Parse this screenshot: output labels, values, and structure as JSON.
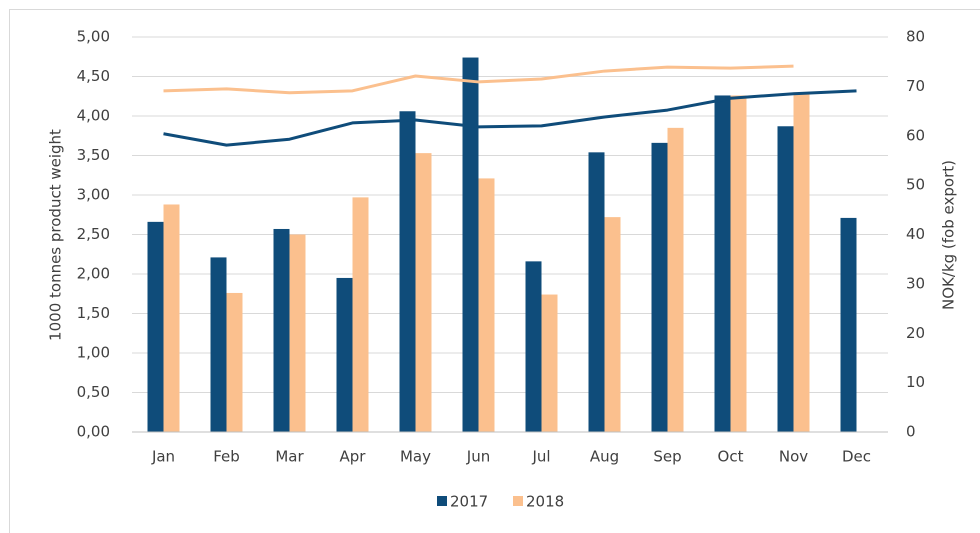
{
  "chart_data": {
    "type": "bar",
    "y_label": "1000 tonnes product weight",
    "y2_label": "NOK/kg (fob export)",
    "categories": [
      "Jan",
      "Feb",
      "Mar",
      "Apr",
      "May",
      "Jun",
      "Jul",
      "Aug",
      "Sep",
      "Oct",
      "Nov",
      "Dec"
    ],
    "series": [
      {
        "name": "2017",
        "color": "#0f4c7a",
        "values": [
          2.66,
          2.21,
          2.57,
          1.95,
          4.06,
          4.74,
          2.16,
          3.54,
          3.66,
          4.26,
          3.87,
          2.71
        ]
      },
      {
        "name": "2018",
        "color": "#fbc08e",
        "values": [
          2.88,
          1.76,
          2.5,
          2.97,
          3.53,
          3.21,
          1.74,
          2.72,
          3.85,
          4.26,
          4.3,
          null
        ]
      }
    ],
    "lines": [
      {
        "color": "#0f4c7a",
        "axis": "y2",
        "values": [
          60.4,
          58.1,
          59.3,
          62.6,
          63.2,
          61.8,
          62.0,
          63.8,
          65.2,
          67.6,
          68.5,
          69.1
        ]
      },
      {
        "color": "#fbc08e",
        "axis": "y2",
        "values": [
          69.1,
          69.5,
          68.7,
          69.1,
          72.1,
          70.9,
          71.5,
          73.1,
          73.9,
          73.7,
          74.1,
          null
        ]
      }
    ],
    "ylim": [
      0,
      5
    ],
    "yticks": [
      {
        "value": 0,
        "label": "0,00"
      },
      {
        "value": 0.5,
        "label": "0,50"
      },
      {
        "value": 1,
        "label": "1,00"
      },
      {
        "value": 1.5,
        "label": "1,50"
      },
      {
        "value": 2,
        "label": "2,00"
      },
      {
        "value": 2.5,
        "label": "2,50"
      },
      {
        "value": 3,
        "label": "3,00"
      },
      {
        "value": 3.5,
        "label": "3,50"
      },
      {
        "value": 4,
        "label": "4,00"
      },
      {
        "value": 4.5,
        "label": "4,50"
      },
      {
        "value": 5,
        "label": "5,00"
      }
    ],
    "y2lim": [
      0,
      80
    ],
    "y2ticks": [
      0,
      10,
      20,
      30,
      40,
      50,
      60,
      70,
      80
    ],
    "grid": true,
    "legend": "bottom"
  }
}
